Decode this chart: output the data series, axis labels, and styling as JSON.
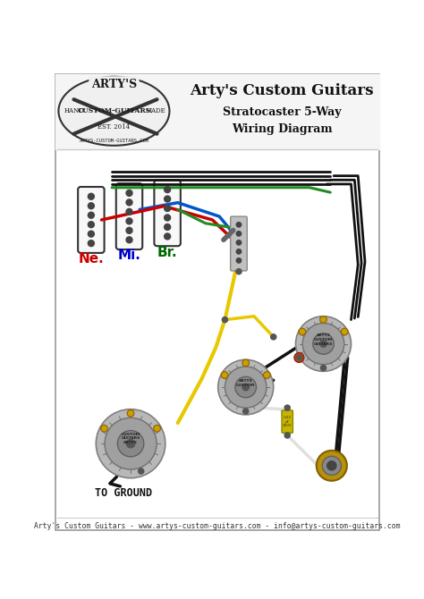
{
  "title1": "Arty's Custom Guitars",
  "title2": "Stratocaster 5-Way",
  "title3": "Wiring Diagram",
  "footer": "Arty's Custom Guitars - www.artys-custom-guitars.com - info@artys-custom-guitars.com",
  "label_ne": "Ne.",
  "label_mi": "Mi.",
  "label_br": "Br.",
  "label_ground": "TO GROUND",
  "bg_color": "#ffffff",
  "title_color": "#1a1a1a",
  "ne_color": "#cc0000",
  "mi_color": "#0000cc",
  "br_color": "#006600",
  "wire_black": "#111111",
  "wire_yellow": "#e8c800",
  "wire_white": "#e0e0e0",
  "wire_green": "#228B22",
  "wire_blue": "#0055cc",
  "wire_red": "#cc0000",
  "pickup_outline": "#333333",
  "pickup_fill": "#ffffff",
  "pot_color_outer": "#b0b0b0",
  "pot_color_mid": "#989898",
  "pot_color_inner": "#808080",
  "lug_color": "#c8a000",
  "border_color": "#aaaaaa",
  "figsize": [
    4.74,
    6.7
  ],
  "dpi": 100
}
